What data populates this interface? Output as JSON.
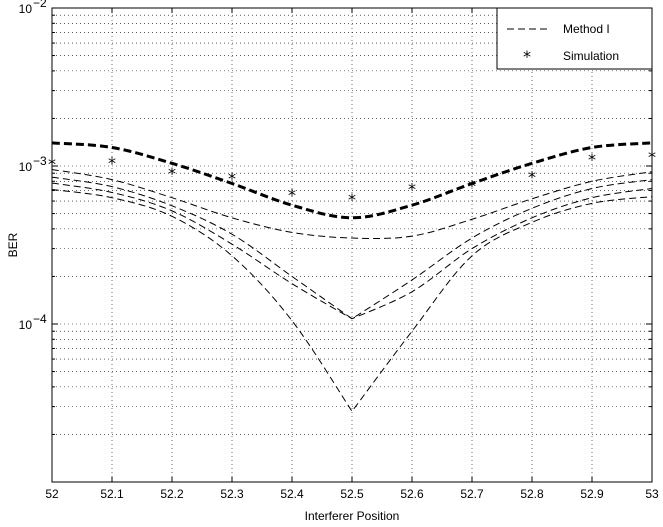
{
  "chart_data": {
    "type": "line",
    "xlabel": "Interferer Position",
    "ylabel": "BER",
    "xlim": [
      52,
      53
    ],
    "ylim": [
      1e-05,
      0.01
    ],
    "yscale": "log",
    "grid": true,
    "legend_position": "top-right",
    "x_ticks": [
      {
        "value": 52.0,
        "label": "52"
      },
      {
        "value": 52.1,
        "label": "52.1"
      },
      {
        "value": 52.2,
        "label": "52.2"
      },
      {
        "value": 52.3,
        "label": "52.3"
      },
      {
        "value": 52.4,
        "label": "52.4"
      },
      {
        "value": 52.5,
        "label": "52.5"
      },
      {
        "value": 52.6,
        "label": "52.6"
      },
      {
        "value": 52.7,
        "label": "52.7"
      },
      {
        "value": 52.8,
        "label": "52.8"
      },
      {
        "value": 52.9,
        "label": "52.9"
      },
      {
        "value": 53.0,
        "label": "53"
      }
    ],
    "y_ticks": [
      {
        "value": 0.01,
        "base": "10",
        "exp": "−2"
      },
      {
        "value": 0.001,
        "base": "10",
        "exp": "−3"
      },
      {
        "value": 0.0001,
        "base": "10",
        "exp": "−4"
      }
    ],
    "legend": [
      {
        "label": "Method I",
        "style": "dashed"
      },
      {
        "label": "Simulation",
        "style": "marker"
      }
    ],
    "series": [
      {
        "name": "Method I",
        "style": "dashed",
        "bold": true,
        "x": [
          52.0,
          52.1,
          52.2,
          52.3,
          52.4,
          52.5,
          52.6,
          52.7,
          52.8,
          52.9,
          53.0
        ],
        "y": [
          0.0014,
          0.00131,
          0.00104,
          0.000775,
          0.000565,
          0.00047,
          0.000565,
          0.000775,
          0.00104,
          0.00131,
          0.0014
        ]
      },
      {
        "style": "dashed",
        "bold": false,
        "x": [
          52.0,
          52.1,
          52.2,
          52.3,
          52.4,
          52.5,
          52.6,
          52.7,
          52.8,
          52.9,
          53.0
        ],
        "y": [
          0.00095,
          0.00082,
          0.00063,
          0.00047,
          0.00038,
          0.00035,
          0.00036,
          0.00046,
          0.00062,
          0.0008,
          0.00092
        ]
      },
      {
        "style": "dashed",
        "bold": false,
        "x": [
          52.0,
          52.1,
          52.2,
          52.3,
          52.4,
          52.5,
          52.6,
          52.7,
          52.8,
          52.9,
          53.0
        ],
        "y": [
          0.00085,
          0.00074,
          0.00056,
          0.00037,
          0.0002,
          0.000108,
          0.00019,
          0.00035,
          0.00054,
          0.00072,
          0.00082
        ]
      },
      {
        "style": "dashed",
        "bold": false,
        "x": [
          52.0,
          52.1,
          52.2,
          52.3,
          52.4,
          52.5,
          52.6,
          52.7,
          52.8,
          52.9,
          53.0
        ],
        "y": [
          0.00078,
          0.00068,
          0.00052,
          0.00032,
          0.00018,
          0.000108,
          0.00016,
          0.0003,
          0.00047,
          0.00063,
          0.00072
        ]
      },
      {
        "style": "dashed",
        "bold": false,
        "x": [
          52.0,
          52.1,
          52.2,
          52.3,
          52.4,
          52.5,
          52.6,
          52.7,
          52.8,
          52.9,
          53.0
        ],
        "y": [
          0.00071,
          0.00063,
          0.00048,
          0.00027,
          0.000105,
          2.8e-05,
          9e-05,
          0.00027,
          0.00044,
          0.00058,
          0.00064
        ]
      },
      {
        "name": "Simulation",
        "style": "marker",
        "x": [
          52.0,
          52.1,
          52.2,
          52.3,
          52.4,
          52.5,
          52.6,
          52.7,
          52.8,
          52.9,
          53.0
        ],
        "y": [
          0.00104,
          0.00105,
          0.0009,
          0.00084,
          0.00066,
          0.00062,
          0.00072,
          0.00075,
          0.00086,
          0.00111,
          0.00115
        ]
      }
    ]
  }
}
